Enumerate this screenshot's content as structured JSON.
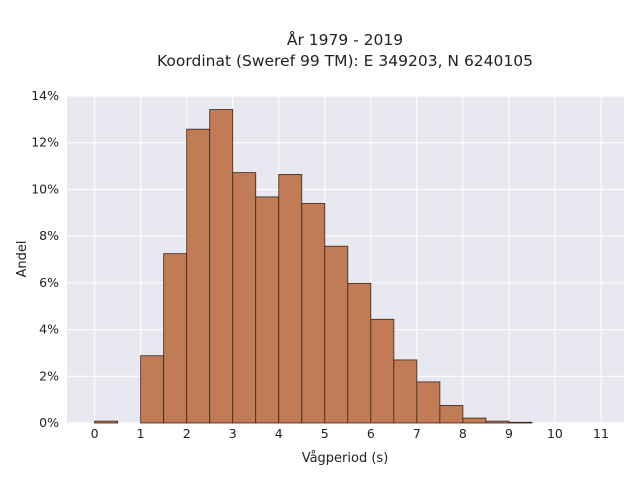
{
  "chart_data": {
    "type": "bar",
    "title_lines": [
      "År 1979 - 2019",
      "Koordinat (Sweref 99 TM): E 349203, N 6240105"
    ],
    "xlabel": "Vågperiod (s)",
    "ylabel": "Andel",
    "bin_width": 0.5,
    "bin_starts": [
      0,
      0.5,
      1,
      1.5,
      2,
      2.5,
      3,
      3.5,
      4,
      4.5,
      5,
      5.5,
      6,
      6.5,
      7,
      7.5,
      8,
      8.5,
      9,
      9.5,
      10,
      10.5
    ],
    "values": [
      0.0008,
      0,
      0.0288,
      0.0725,
      0.1258,
      0.1342,
      0.1072,
      0.0968,
      0.1064,
      0.094,
      0.0757,
      0.0598,
      0.0444,
      0.027,
      0.0176,
      0.0075,
      0.0021,
      0.0008,
      0.0003,
      0,
      0,
      0
    ],
    "xlim": [
      -0.6,
      11.5
    ],
    "ylim": [
      0,
      0.14
    ],
    "x_ticks": [
      "0",
      "1",
      "2",
      "3",
      "4",
      "5",
      "6",
      "7",
      "8",
      "9",
      "10",
      "11"
    ],
    "y_ticks": [
      "0%",
      "2%",
      "4%",
      "6%",
      "8%",
      "10%",
      "12%",
      "14%"
    ],
    "grid": true,
    "legend": "none",
    "colors": {
      "bar_fill": "#c17c55",
      "bar_stroke": "#3b2418",
      "plot_background": "#e8e9f0",
      "grid": "#ffffff",
      "text": "#222222"
    }
  }
}
